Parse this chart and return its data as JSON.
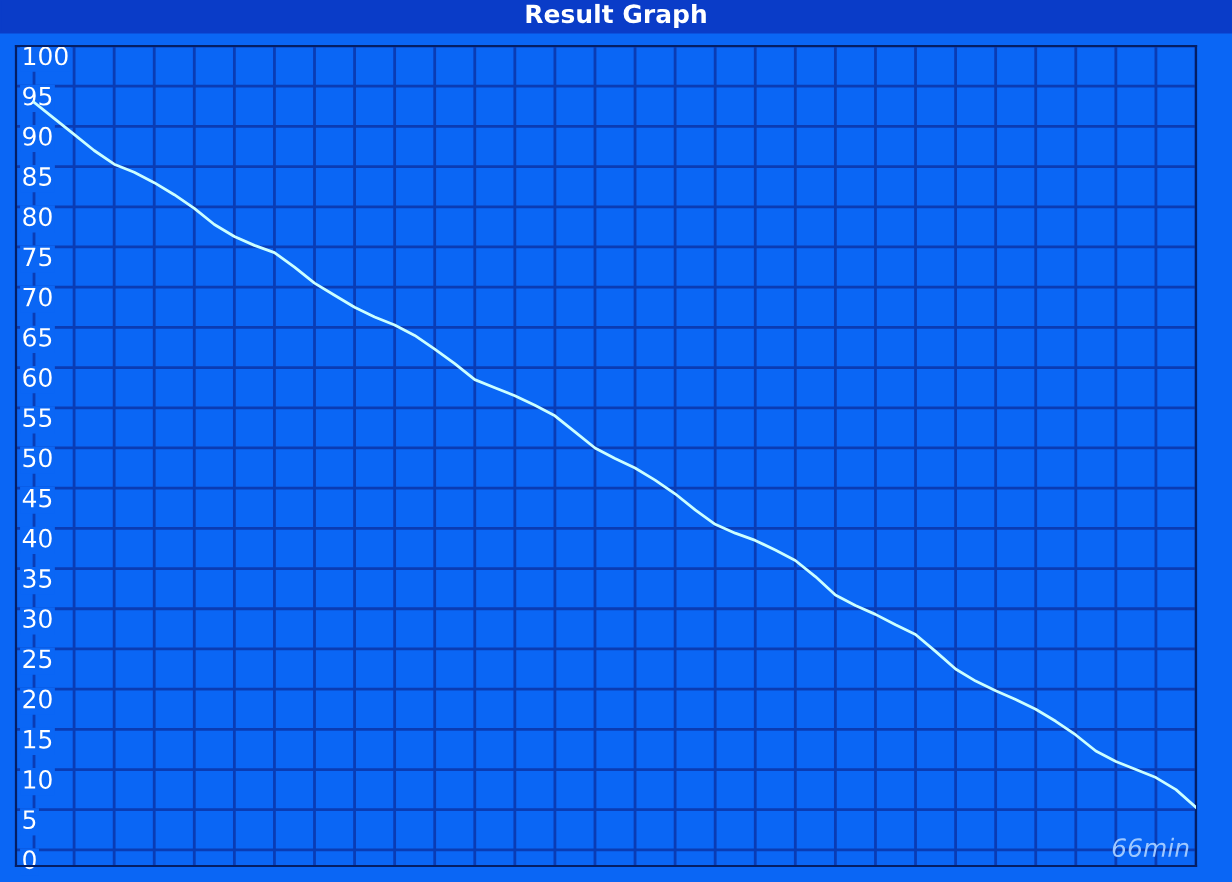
{
  "chart_data": {
    "type": "line",
    "title": "Result Graph",
    "categories": [
      null,
      null,
      null,
      null,
      null,
      null,
      null,
      null,
      null,
      null,
      null,
      null,
      null,
      null,
      null,
      null,
      null,
      null,
      null,
      null,
      null,
      null,
      null,
      null,
      null,
      null,
      null,
      null,
      null,
      null,
      null,
      null,
      null,
      null,
      null,
      null,
      null,
      null,
      null,
      null,
      null,
      null,
      null,
      null,
      null,
      null,
      null,
      null,
      null,
      null,
      null,
      null,
      null,
      null,
      null,
      null,
      null,
      null,
      null
    ],
    "series": [
      {
        "color": "#ccffff",
        "values": [
          93,
          91.0,
          89.0,
          87.0,
          85.3,
          84.3,
          83.0,
          81.5,
          79.8,
          77.8,
          76.3,
          75.2,
          74.3,
          72.5,
          70.5,
          69.0,
          67.5,
          66.3,
          65.3,
          64.0,
          62.3,
          60.5,
          58.5,
          57.5,
          56.5,
          55.3,
          54.0,
          52.0,
          50.0,
          48.7,
          47.5,
          46.0,
          44.3,
          42.3,
          40.5,
          39.4,
          38.5,
          37.3,
          36.0,
          34.0,
          31.7,
          30.4,
          29.3,
          28.0,
          26.8,
          24.7,
          22.5,
          21.0,
          19.8,
          18.7,
          17.5,
          16.0,
          14.3,
          12.3,
          11.0,
          10.0,
          9.0,
          7.5,
          5.3
        ]
      }
    ],
    "ylim": [
      -2,
      100
    ],
    "yticks": [
      0,
      5,
      10,
      15,
      20,
      25,
      30,
      35,
      40,
      45,
      50,
      55,
      60,
      65,
      70,
      75,
      80,
      85,
      90,
      95,
      100
    ],
    "grid": true,
    "tick_labels": "y",
    "marker": "none",
    "line_style": "solid",
    "annotations": [
      "66min"
    ]
  }
}
